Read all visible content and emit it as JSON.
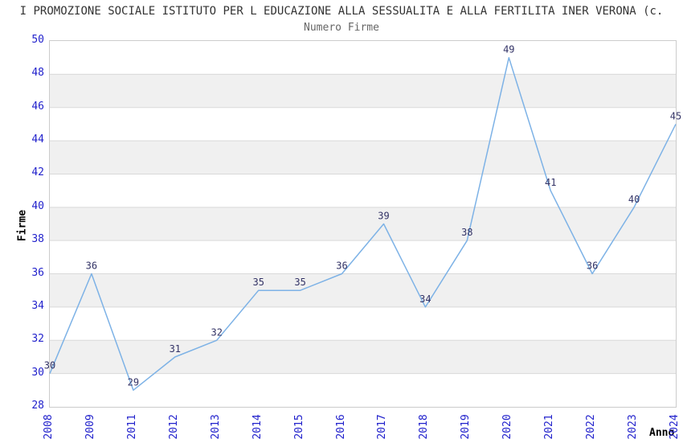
{
  "header": {
    "title": "I PROMOZIONE SOCIALE ISTITUTO PER L EDUCAZIONE ALLA SESSUALITA E ALLA FERTILITA INER VERONA (c.",
    "subtitle": "Numero Firme"
  },
  "chart_data": {
    "type": "line",
    "title": "Numero Firme",
    "xlabel": "Anno",
    "ylabel": "Firme",
    "categories": [
      "2008",
      "2009",
      "2011",
      "2012",
      "2013",
      "2014",
      "2015",
      "2016",
      "2017",
      "2018",
      "2019",
      "2020",
      "2021",
      "2022",
      "2023",
      "2024"
    ],
    "values": [
      30,
      36,
      29,
      31,
      32,
      35,
      35,
      36,
      39,
      34,
      38,
      49,
      41,
      36,
      40,
      45
    ],
    "ylim": [
      28,
      50
    ],
    "ytick_step": 2,
    "grid": true,
    "legend": "none",
    "colors": {
      "line": "#7db2e6",
      "tick_label": "#2222cc",
      "point_label": "#333366",
      "band": "#f0f0f0",
      "gridline": "#d9d9d9",
      "border": "#cccccc",
      "title": "#333333",
      "subtitle": "#666666"
    }
  }
}
